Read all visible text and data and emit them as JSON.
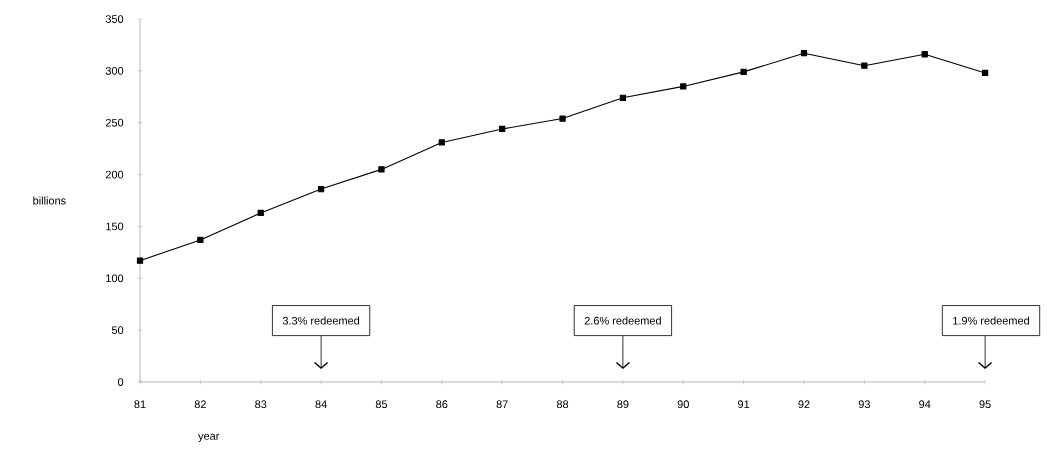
{
  "chart_data": {
    "type": "line",
    "xlabel": "year",
    "ylabel": "billions",
    "categories": [
      "81",
      "82",
      "83",
      "84",
      "85",
      "86",
      "87",
      "88",
      "89",
      "90",
      "91",
      "92",
      "93",
      "94",
      "95"
    ],
    "values": [
      117,
      137,
      163,
      186,
      205,
      231,
      244,
      254,
      274,
      285,
      299,
      317,
      305,
      316,
      298
    ],
    "color": "#000000",
    "marker": "square",
    "line_style": "solid",
    "ylim": [
      0,
      350
    ],
    "yticks": [
      0,
      50,
      100,
      150,
      200,
      250,
      300,
      350
    ],
    "grid": false,
    "annotations": [
      "3.3% redeemed",
      "2.6% redeemed",
      "1.9% redeemed"
    ]
  }
}
